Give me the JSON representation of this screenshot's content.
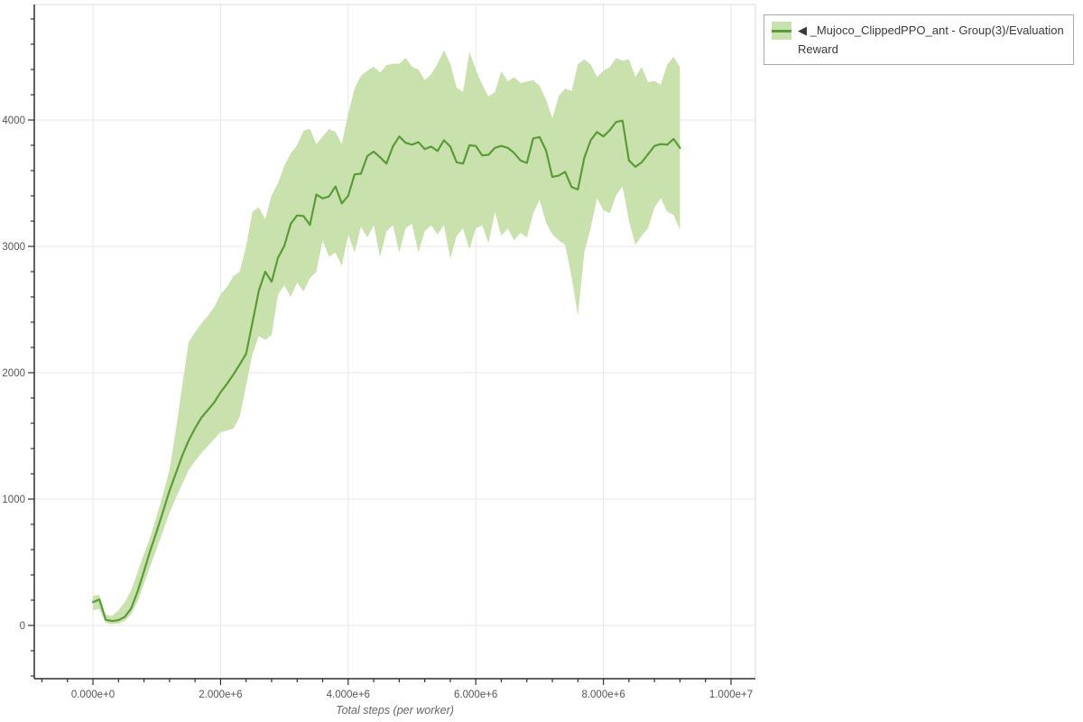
{
  "legend": {
    "label": "◀ _Mujoco_ClippedPPO_ant - Group(3)/Evaluation Reward"
  },
  "colors": {
    "line": "#5a9c37",
    "band": "#c9e1ad",
    "grid": "#e7e7e7",
    "outer_border": "#dcdcdc",
    "spine": "#2e2e2e",
    "tick_label": "#555555",
    "axis_title": "#666666",
    "legend_border": "#a9a9a9"
  },
  "chart_data": {
    "type": "line",
    "title": "",
    "xlabel": "Total steps (per worker)",
    "ylabel": "",
    "x_unit": "millions of steps",
    "grid": true,
    "legend_position": "top-right-outside",
    "xlim_e6": [
      -0.92,
      10.38
    ],
    "ylim": [
      -420,
      4915
    ],
    "x_ticks": {
      "values": [
        0,
        2,
        4,
        6,
        8,
        10
      ],
      "labels": [
        "0.000e+0",
        "2.000e+6",
        "4.000e+6",
        "6.000e+6",
        "8.000e+6",
        "1.000e+7"
      ],
      "minor_step": 0.4,
      "minor_range": [
        -0.8,
        10.0
      ]
    },
    "y_ticks": {
      "values": [
        0,
        1000,
        2000,
        3000,
        4000
      ],
      "labels": [
        "0",
        "1000",
        "2000",
        "3000",
        "4000"
      ],
      "minor_step": 200,
      "minor_range": [
        -400,
        4800
      ]
    },
    "series": [
      {
        "name": "◀ _Mujoco_ClippedPPO_ant - Group(3)/Evaluation Reward",
        "color": "#5a9c37",
        "band_color": "#c9e1ad",
        "x_e6": [
          0.0,
          0.1,
          0.2,
          0.3,
          0.4,
          0.5,
          0.6,
          0.7,
          0.8,
          0.9,
          1.0,
          1.1,
          1.2,
          1.3,
          1.4,
          1.5,
          1.6,
          1.7,
          1.8,
          1.9,
          2.0,
          2.1,
          2.2,
          2.3,
          2.4,
          2.5,
          2.6,
          2.7,
          2.8,
          2.9,
          3.0,
          3.1,
          3.2,
          3.3,
          3.4,
          3.5,
          3.6,
          3.7,
          3.8,
          3.9,
          4.0,
          4.1,
          4.2,
          4.3,
          4.4,
          4.5,
          4.6,
          4.7,
          4.8,
          4.9,
          5.0,
          5.1,
          5.2,
          5.3,
          5.4,
          5.5,
          5.6,
          5.7,
          5.8,
          5.9,
          6.0,
          6.1,
          6.2,
          6.3,
          6.4,
          6.5,
          6.6,
          6.7,
          6.8,
          6.9,
          7.0,
          7.1,
          7.2,
          7.3,
          7.4,
          7.5,
          7.6,
          7.7,
          7.8,
          7.9,
          8.0,
          8.1,
          8.2,
          8.3,
          8.4,
          8.5,
          8.6,
          8.7,
          8.8,
          8.9,
          9.0,
          9.1,
          9.2
        ],
        "mean": [
          185,
          205,
          45,
          34,
          42,
          68,
          135,
          270,
          430,
          595,
          745,
          905,
          1065,
          1205,
          1345,
          1465,
          1560,
          1645,
          1705,
          1765,
          1845,
          1912,
          1985,
          2065,
          2150,
          2400,
          2650,
          2800,
          2720,
          2910,
          3005,
          3180,
          3245,
          3240,
          3170,
          3410,
          3380,
          3395,
          3475,
          3340,
          3400,
          3570,
          3575,
          3715,
          3750,
          3705,
          3655,
          3790,
          3870,
          3820,
          3805,
          3825,
          3770,
          3790,
          3755,
          3840,
          3790,
          3665,
          3655,
          3800,
          3795,
          3720,
          3725,
          3780,
          3795,
          3780,
          3740,
          3680,
          3660,
          3855,
          3865,
          3760,
          3550,
          3560,
          3590,
          3470,
          3450,
          3700,
          3840,
          3905,
          3870,
          3920,
          3985,
          3995,
          3680,
          3630,
          3665,
          3730,
          3795,
          3810,
          3805,
          3850,
          3780
        ],
        "lower": [
          120,
          130,
          20,
          10,
          15,
          35,
          90,
          190,
          330,
          470,
          610,
          750,
          890,
          1010,
          1120,
          1230,
          1300,
          1365,
          1420,
          1475,
          1530,
          1542,
          1558,
          1650,
          1900,
          2150,
          2290,
          2260,
          2300,
          2620,
          2690,
          2600,
          2714,
          2643,
          2750,
          2800,
          3048,
          2917,
          2952,
          2845,
          3095,
          2952,
          3155,
          3071,
          3167,
          2917,
          3119,
          3167,
          2952,
          3143,
          3179,
          2952,
          3119,
          3167,
          3095,
          3167,
          2905,
          3083,
          3143,
          2976,
          3143,
          3167,
          3024,
          3274,
          3083,
          3143,
          3048,
          3107,
          3071,
          3262,
          3369,
          3190,
          3095,
          3048,
          3012,
          2762,
          2452,
          2952,
          3143,
          3381,
          3286,
          3262,
          3405,
          3474,
          3202,
          3012,
          3083,
          3143,
          3310,
          3381,
          3274,
          3250,
          3131
        ],
        "upper": [
          235,
          240,
          85,
          75,
          120,
          185,
          280,
          420,
          570,
          700,
          870,
          1040,
          1230,
          1550,
          1900,
          2245,
          2320,
          2390,
          2450,
          2520,
          2619,
          2680,
          2762,
          2800,
          3000,
          3274,
          3310,
          3214,
          3405,
          3500,
          3640,
          3738,
          3800,
          3917,
          3929,
          3810,
          3869,
          3929,
          3905,
          3810,
          4050,
          4250,
          4351,
          4390,
          4422,
          4375,
          4434,
          4446,
          4446,
          4493,
          4422,
          4399,
          4316,
          4363,
          4446,
          4552,
          4446,
          4257,
          4222,
          4540,
          4399,
          4281,
          4186,
          4222,
          4387,
          4304,
          4340,
          4293,
          4304,
          4316,
          4269,
          4163,
          4012,
          4190,
          4250,
          4230,
          4440,
          4480,
          4440,
          4340,
          4390,
          4420,
          4490,
          4470,
          4480,
          4340,
          4420,
          4300,
          4310,
          4280,
          4440,
          4500,
          4420
        ]
      }
    ]
  }
}
